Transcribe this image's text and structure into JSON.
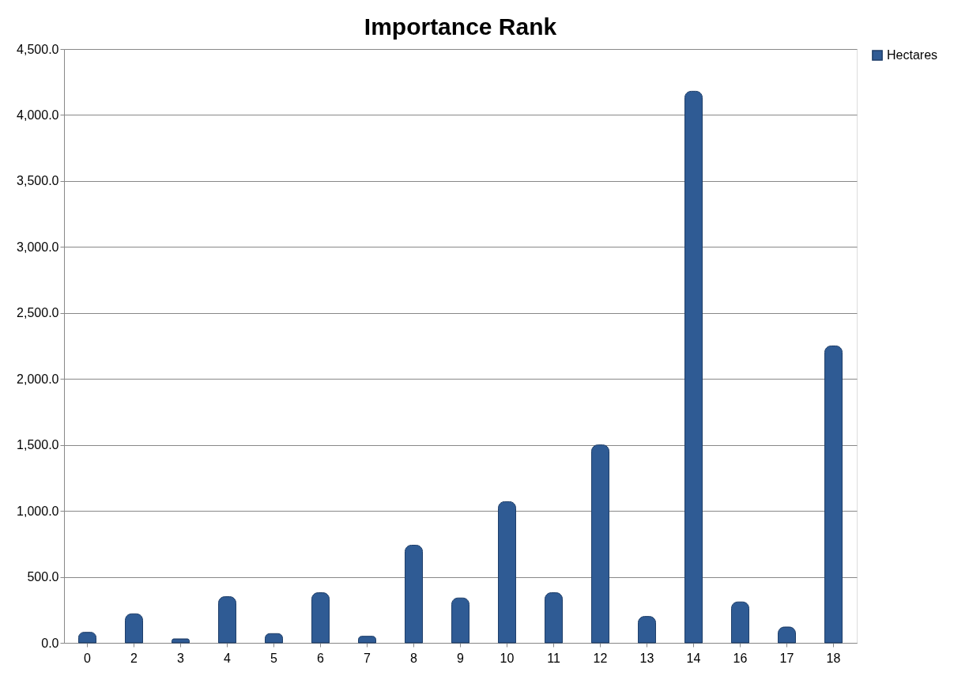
{
  "chart_data": {
    "type": "bar",
    "title": "Importance Rank",
    "categories": [
      "0",
      "2",
      "3",
      "4",
      "5",
      "6",
      "7",
      "8",
      "9",
      "10",
      "11",
      "12",
      "13",
      "14",
      "16",
      "17",
      "18"
    ],
    "series": [
      {
        "name": "Hectares",
        "color": "#2f5b94",
        "values": [
          80,
          220,
          30,
          350,
          70,
          380,
          50,
          740,
          340,
          1070,
          380,
          1500,
          200,
          4180,
          310,
          120,
          2250
        ]
      }
    ],
    "ylim": [
      0,
      4500
    ],
    "yticks": [
      {
        "value": 0,
        "label": "0.0"
      },
      {
        "value": 500,
        "label": "500.0"
      },
      {
        "value": 1000,
        "label": "1,000.0"
      },
      {
        "value": 1500,
        "label": "1,500.0"
      },
      {
        "value": 2000,
        "label": "2,000.0"
      },
      {
        "value": 2500,
        "label": "2,500.0"
      },
      {
        "value": 3000,
        "label": "3,000.0"
      },
      {
        "value": 3500,
        "label": "3,500.0"
      },
      {
        "value": 4000,
        "label": "4,000.0"
      },
      {
        "value": 4500,
        "label": "4,500.0"
      }
    ],
    "grid": "y",
    "legend": "right"
  }
}
